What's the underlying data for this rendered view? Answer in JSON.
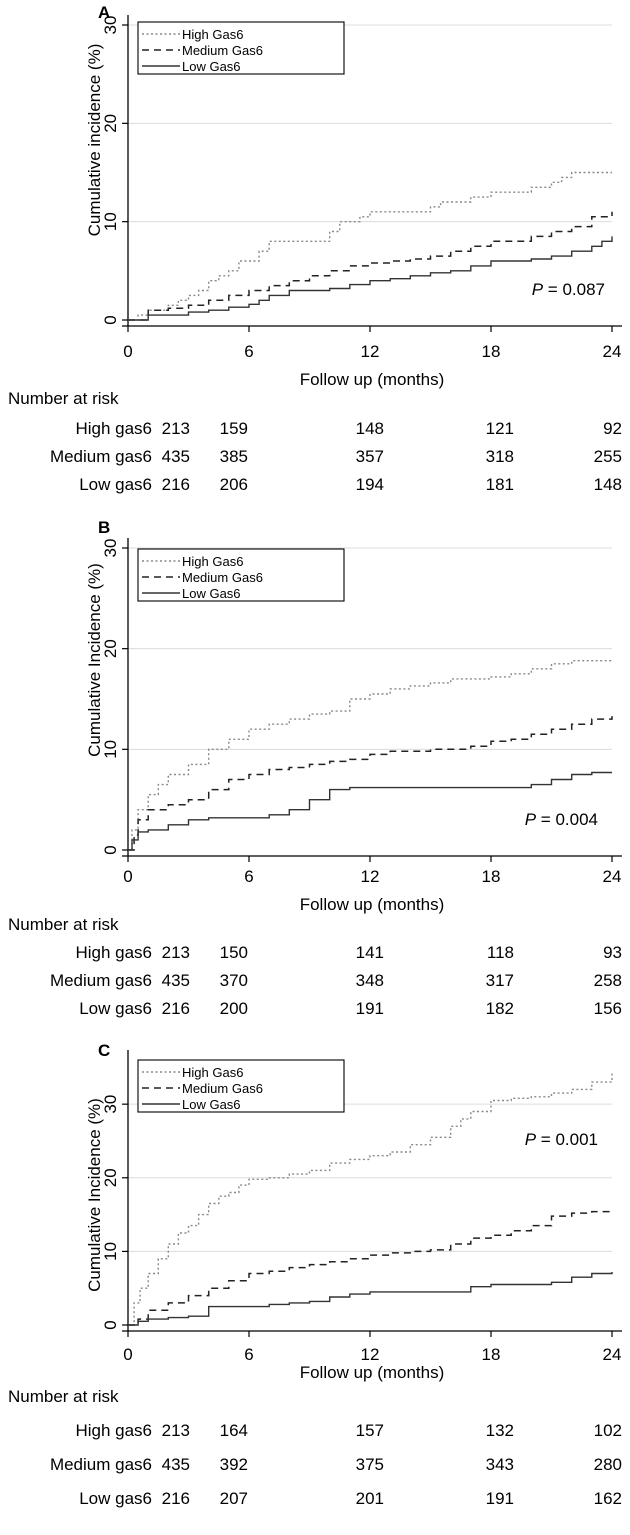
{
  "chart_data": [
    {
      "type": "line",
      "panel_label": "A",
      "ylabel": "Cumulative incidence (%)",
      "xlabel": "Follow up (months)",
      "xlim": [
        0,
        24
      ],
      "ylim": [
        0,
        30
      ],
      "xticks": [
        0,
        6,
        12,
        18,
        24
      ],
      "yticks": [
        0,
        10,
        20,
        30
      ],
      "grid": "horizontal",
      "legend_position": "top-left",
      "p_value_label": "P",
      "p_value_text": " = 0.087",
      "series": [
        {
          "name": "High Gas6",
          "style": "dotted",
          "x": [
            0,
            0.5,
            1,
            1.5,
            2,
            2.5,
            3,
            3.5,
            4,
            4.5,
            5,
            5.5,
            6,
            6.5,
            7,
            8,
            9,
            10,
            10.5,
            11,
            11.5,
            12,
            13,
            14,
            15,
            15.5,
            16,
            17,
            18,
            19,
            20,
            21,
            21.5,
            22,
            23,
            24
          ],
          "y": [
            0,
            0.5,
            1,
            1,
            1.5,
            2,
            2.5,
            3,
            4,
            4.5,
            5,
            6,
            6,
            7,
            8,
            8,
            8,
            9,
            10,
            10,
            10.5,
            11,
            11,
            11,
            11.5,
            12,
            12,
            12.5,
            13,
            13,
            13.5,
            14,
            14.5,
            15,
            15,
            15
          ]
        },
        {
          "name": "Medium Gas6",
          "style": "dashed",
          "x": [
            0,
            1,
            2,
            3,
            4,
            5,
            6,
            7,
            8,
            9,
            10,
            11,
            12,
            13,
            14,
            15,
            16,
            17,
            18,
            19,
            20,
            21,
            22,
            23,
            24
          ],
          "y": [
            0,
            1,
            1.2,
            1.5,
            2,
            2.5,
            3,
            3.5,
            4,
            4.5,
            5,
            5.5,
            5.8,
            6,
            6.2,
            6.5,
            7,
            7.5,
            8,
            8,
            8.5,
            9,
            9.5,
            10.5,
            11
          ]
        },
        {
          "name": "Low Gas6",
          "style": "solid",
          "x": [
            0,
            1,
            3,
            4,
            5,
            6,
            6.5,
            7,
            8,
            9,
            10,
            11,
            12,
            13,
            14,
            15,
            16,
            17,
            18,
            19,
            20,
            21,
            22,
            23,
            23.5,
            24
          ],
          "y": [
            0,
            0.5,
            0.8,
            1,
            1.3,
            1.6,
            2,
            2.5,
            3,
            3,
            3.2,
            3.6,
            4,
            4.2,
            4.5,
            4.8,
            5,
            5.5,
            6,
            6,
            6.2,
            6.5,
            7,
            7.5,
            8,
            8.5
          ]
        }
      ],
      "risk_table": {
        "title": "Number at risk",
        "rows": [
          {
            "label": "High gas6",
            "values": [
              "213",
              "159",
              "148",
              "121",
              "92"
            ]
          },
          {
            "label": "Medium gas6",
            "values": [
              "435",
              "385",
              "357",
              "318",
              "255"
            ]
          },
          {
            "label": "Low gas6",
            "values": [
              "216",
              "206",
              "194",
              "181",
              "148"
            ]
          }
        ]
      }
    },
    {
      "type": "line",
      "panel_label": "B",
      "ylabel": "Cumulative Incidence (%)",
      "xlabel": "Follow up (months)",
      "xlim": [
        0,
        24
      ],
      "ylim": [
        0,
        30
      ],
      "xticks": [
        0,
        6,
        12,
        18,
        24
      ],
      "yticks": [
        0,
        10,
        20,
        30
      ],
      "grid": "horizontal",
      "legend_position": "top-left",
      "p_value_label": "P",
      "p_value_text": " = 0.004",
      "series": [
        {
          "name": "High Gas6",
          "style": "dotted",
          "x": [
            0,
            0.2,
            0.5,
            1,
            1.5,
            2,
            3,
            4,
            5,
            6,
            7,
            8,
            9,
            10,
            11,
            12,
            13,
            14,
            15,
            16,
            17,
            18,
            19,
            20,
            21,
            22,
            23,
            24
          ],
          "y": [
            0,
            2,
            4,
            5.5,
            6.5,
            7.5,
            8.5,
            10,
            11,
            12,
            12.5,
            13,
            13.5,
            13.8,
            15,
            15.5,
            16,
            16.3,
            16.6,
            17,
            17,
            17.2,
            17.5,
            18,
            18.5,
            18.8,
            18.8,
            18.8
          ]
        },
        {
          "name": "Medium Gas6",
          "style": "dashed",
          "x": [
            0,
            0.3,
            0.5,
            1,
            2,
            3,
            4,
            5,
            6,
            7,
            8,
            9,
            10,
            11,
            12,
            13,
            14,
            15,
            16,
            17,
            18,
            19,
            20,
            21,
            22,
            23,
            24
          ],
          "y": [
            0,
            1.5,
            3,
            4,
            4.5,
            5,
            6,
            7,
            7.5,
            8,
            8.2,
            8.5,
            8.8,
            9,
            9.5,
            9.8,
            9.8,
            10,
            10,
            10.3,
            10.8,
            11,
            11.5,
            12,
            12.5,
            13,
            13.3
          ]
        },
        {
          "name": "Low Gas6",
          "style": "solid",
          "x": [
            0,
            0.2,
            0.5,
            1,
            2,
            3,
            4,
            5,
            6,
            7,
            8,
            9,
            10,
            11,
            12,
            13,
            14,
            15,
            16,
            17,
            18,
            19,
            20,
            21,
            22,
            23,
            24
          ],
          "y": [
            0,
            1,
            1.8,
            2,
            2.5,
            3,
            3.2,
            3.2,
            3.2,
            3.5,
            4,
            5,
            6,
            6.2,
            6.2,
            6.2,
            6.2,
            6.2,
            6.2,
            6.2,
            6.2,
            6.2,
            6.5,
            7,
            7.5,
            7.7,
            7.7
          ]
        }
      ],
      "risk_table": {
        "title": "Number at risk",
        "rows": [
          {
            "label": "High gas6",
            "values": [
              "213",
              "150",
              "141",
              "118",
              "93"
            ]
          },
          {
            "label": "Medium gas6",
            "values": [
              "435",
              "370",
              "348",
              "317",
              "258"
            ]
          },
          {
            "label": "Low gas6",
            "values": [
              "216",
              "200",
              "191",
              "182",
              "156"
            ]
          }
        ]
      }
    },
    {
      "type": "line",
      "panel_label": "C",
      "ylabel": "Cumulative Incidence (%)",
      "xlabel": "Follow up (months)",
      "xlim": [
        0,
        24
      ],
      "ylim": [
        0,
        36
      ],
      "xticks": [
        0,
        6,
        12,
        18,
        24
      ],
      "yticks": [
        0,
        10,
        20,
        30
      ],
      "grid": "horizontal",
      "legend_position": "top-left",
      "p_value_label": "P",
      "p_value_text": " = 0.001",
      "series": [
        {
          "name": "High Gas6",
          "style": "dotted",
          "x": [
            0,
            0.3,
            0.6,
            1,
            1.5,
            2,
            2.5,
            3,
            3.5,
            4,
            4.5,
            5,
            5.5,
            6,
            7,
            8,
            9,
            10,
            11,
            12,
            13,
            14,
            15,
            16,
            16.5,
            17,
            18,
            19,
            20,
            21,
            22,
            23,
            24
          ],
          "y": [
            0,
            3,
            5,
            7,
            9,
            11,
            12.5,
            13.5,
            15,
            16.5,
            17.5,
            18,
            19,
            19.8,
            20,
            20.5,
            21,
            22,
            22.5,
            23,
            23.5,
            24.5,
            25.5,
            27,
            28,
            29,
            30.5,
            30.8,
            31,
            31.5,
            32,
            33,
            34.3
          ]
        },
        {
          "name": "Medium Gas6",
          "style": "dashed",
          "x": [
            0,
            0.5,
            1,
            2,
            3,
            4,
            5,
            6,
            7,
            8,
            9,
            10,
            11,
            12,
            13,
            14,
            15,
            16,
            17,
            18,
            19,
            20,
            21,
            22,
            23,
            24
          ],
          "y": [
            0,
            0.8,
            2,
            3,
            4,
            5,
            6,
            7,
            7.3,
            7.8,
            8.2,
            8.6,
            9,
            9.5,
            9.8,
            10,
            10.2,
            11,
            11.8,
            12.2,
            12.8,
            13.5,
            14.8,
            15.2,
            15.4,
            15.5
          ]
        },
        {
          "name": "Low Gas6",
          "style": "solid",
          "x": [
            0,
            0.5,
            1,
            2,
            3,
            4,
            5,
            6,
            7,
            8,
            9,
            10,
            11,
            12,
            13,
            14,
            15,
            16,
            17,
            18,
            19,
            20,
            21,
            22,
            23,
            24
          ],
          "y": [
            0,
            0.5,
            0.8,
            1,
            1.2,
            2.5,
            2.5,
            2.5,
            2.8,
            3,
            3.2,
            3.8,
            4.2,
            4.5,
            4.5,
            4.5,
            4.5,
            4.5,
            5.2,
            5.5,
            5.5,
            5.5,
            5.8,
            6.5,
            7,
            7.2
          ]
        }
      ],
      "risk_table": {
        "title": "Number at risk",
        "rows": [
          {
            "label": "High gas6",
            "values": [
              "213",
              "164",
              "157",
              "132",
              "102"
            ]
          },
          {
            "label": "Medium gas6",
            "values": [
              "435",
              "392",
              "375",
              "343",
              "280"
            ]
          },
          {
            "label": "Low gas6",
            "values": [
              "216",
              "207",
              "201",
              "191",
              "162"
            ]
          }
        ]
      }
    }
  ]
}
